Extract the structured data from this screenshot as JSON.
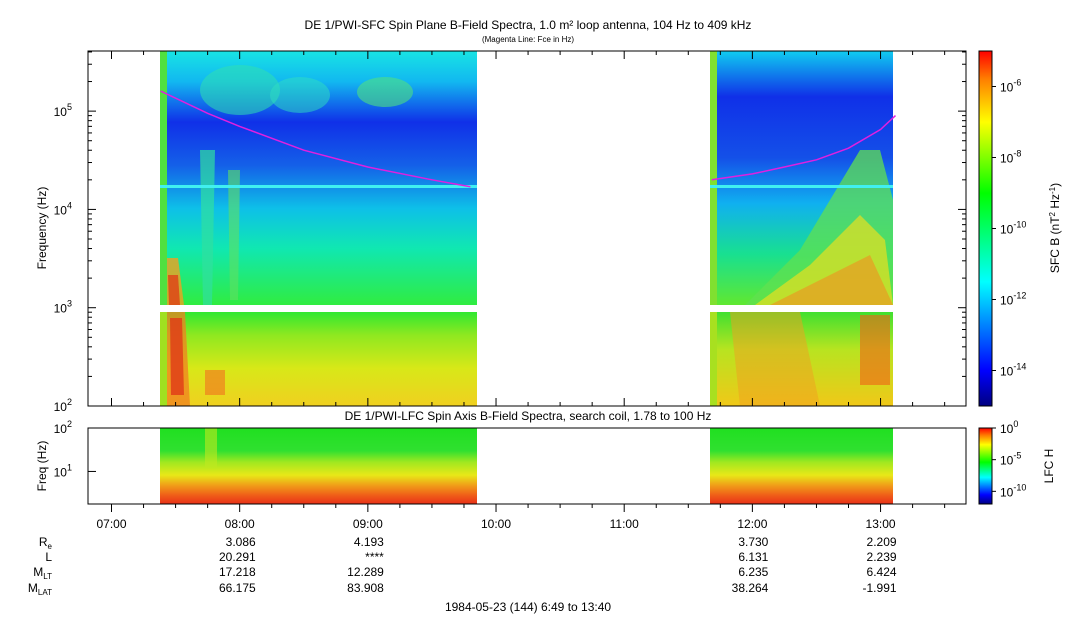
{
  "chart_data": [
    {
      "type": "heatmap",
      "title": "DE 1/PWI-SFC  Spin Plane B-Field Spectra, 1.0 m² loop antenna, 104 Hz to 409 kHz",
      "subtitle": "(Magenta Line: Fce in Hz)",
      "ylabel": "Frequency (Hz)",
      "y_scale": "log",
      "ylim": [
        100,
        409000
      ],
      "y_ticks": [
        "10",
        "10",
        "10",
        "10"
      ],
      "y_tick_exp": [
        "2",
        "3",
        "4",
        "5"
      ],
      "y_tick_values": [
        100,
        1000,
        10000,
        100000
      ],
      "colorbar": {
        "label": "SFC B (nT",
        "label_units": "2",
        "label_tail": " Hz",
        "label_exp": "-1",
        "label_close": ")",
        "scale": "log",
        "range": [
          1e-15,
          1e-05
        ],
        "tick_base": [
          "10",
          "10",
          "10",
          "10",
          "10"
        ],
        "tick_exp": [
          "-6",
          "-8",
          "-10",
          "-12",
          "-14"
        ],
        "tick_values": [
          1e-06,
          1e-08,
          1e-10,
          1e-12,
          1e-14
        ]
      },
      "data_intervals": [
        [
          "07:22",
          "09:50"
        ],
        [
          "11:40",
          "13:08"
        ]
      ],
      "fce_line": {
        "color": "#e020e0",
        "segments": [
          {
            "t": [
              "07:23",
              "07:45",
              "08:00",
              "08:30",
              "09:00",
              "09:30",
              "09:48"
            ],
            "f": [
              160000,
              95000,
              70000,
              40000,
              27000,
              20000,
              17000
            ]
          },
          {
            "t": [
              "11:41",
              "12:00",
              "12:15",
              "12:30",
              "12:45",
              "13:00",
              "13:07"
            ],
            "f": [
              20000,
              23000,
              27000,
              32000,
              42000,
              65000,
              90000
            ]
          }
        ]
      }
    },
    {
      "type": "heatmap",
      "title": "DE 1/PWI-LFC  Spin Axis B-Field Spectra, search coil, 1.78 to 100 Hz",
      "ylabel": "Freq (Hz)",
      "y_scale": "log",
      "ylim": [
        1.78,
        100
      ],
      "y_ticks": [
        "10",
        "10"
      ],
      "y_tick_exp": [
        "2",
        "1"
      ],
      "y_tick_values": [
        100,
        10
      ],
      "colorbar": {
        "label": "LFC H",
        "scale": "log",
        "range": [
          1e-12,
          1
        ],
        "tick_base": [
          "10",
          "10",
          "10"
        ],
        "tick_exp": [
          "0",
          "-5",
          "-10"
        ],
        "tick_values": [
          1,
          1e-05,
          1e-10
        ]
      },
      "data_intervals": [
        [
          "07:22",
          "09:50"
        ],
        [
          "11:40",
          "13:08"
        ]
      ]
    }
  ],
  "time_axis": {
    "range": [
      "06:49",
      "13:40"
    ],
    "tick_labels": [
      "07:00",
      "08:00",
      "09:00",
      "10:00",
      "11:00",
      "12:00",
      "13:00"
    ]
  },
  "ephemeris": {
    "labels": [
      {
        "base": "R",
        "sub": "e"
      },
      {
        "base": "L",
        "sub": ""
      },
      {
        "base": "M",
        "sub": "LT"
      },
      {
        "base": "M",
        "sub": "LAT"
      }
    ],
    "columns": [
      {
        "time": "08:00",
        "values": [
          "3.086",
          "20.291",
          "17.218",
          "66.175"
        ]
      },
      {
        "time": "09:00",
        "values": [
          "4.193",
          "****",
          "12.289",
          "83.908"
        ]
      },
      {
        "time": "12:00",
        "values": [
          "3.730",
          "6.131",
          "6.235",
          "38.264"
        ]
      },
      {
        "time": "13:00",
        "values": [
          "2.209",
          "2.239",
          "6.424",
          "-1.991"
        ]
      }
    ]
  },
  "footer": "1984-05-23 (144) 6:49 to 13:40"
}
